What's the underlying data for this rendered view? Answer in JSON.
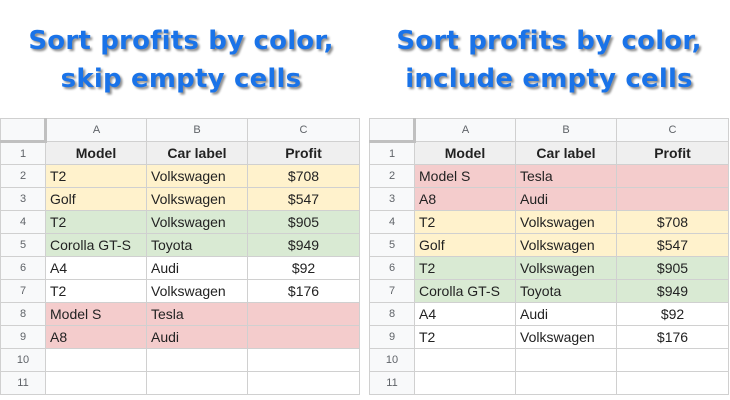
{
  "left_panel": {
    "title_line1": "Sort profits by color,",
    "title_line2": "skip empty cells",
    "columns": [
      "A",
      "B",
      "C"
    ],
    "header": {
      "row_number": "1",
      "model": "Model",
      "car_label": "Car label",
      "profit": "Profit"
    },
    "rows": [
      {
        "n": "2",
        "model": "T2",
        "car": "Volkswagen",
        "profit": "$708",
        "color": "yellow"
      },
      {
        "n": "3",
        "model": "Golf",
        "car": "Volkswagen",
        "profit": "$547",
        "color": "yellow"
      },
      {
        "n": "4",
        "model": "T2",
        "car": "Volkswagen",
        "profit": "$905",
        "color": "green"
      },
      {
        "n": "5",
        "model": "Corolla GT-S",
        "car": "Toyota",
        "profit": "$949",
        "color": "green"
      },
      {
        "n": "6",
        "model": "A4",
        "car": "Audi",
        "profit": "$92",
        "color": ""
      },
      {
        "n": "7",
        "model": "T2",
        "car": "Volkswagen",
        "profit": "$176",
        "color": ""
      },
      {
        "n": "8",
        "model": "Model S",
        "car": "Tesla",
        "profit": "",
        "color": "red"
      },
      {
        "n": "9",
        "model": "A8",
        "car": "Audi",
        "profit": "",
        "color": "red"
      },
      {
        "n": "10",
        "model": "",
        "car": "",
        "profit": "",
        "color": ""
      },
      {
        "n": "11",
        "model": "",
        "car": "",
        "profit": "",
        "color": ""
      }
    ]
  },
  "right_panel": {
    "title_line1": "Sort profits by color,",
    "title_line2": "include empty cells",
    "columns": [
      "A",
      "B",
      "C"
    ],
    "header": {
      "row_number": "1",
      "model": "Model",
      "car_label": "Car label",
      "profit": "Profit"
    },
    "rows": [
      {
        "n": "2",
        "model": "Model S",
        "car": "Tesla",
        "profit": "",
        "color": "red"
      },
      {
        "n": "3",
        "model": "A8",
        "car": "Audi",
        "profit": "",
        "color": "red"
      },
      {
        "n": "4",
        "model": "T2",
        "car": "Volkswagen",
        "profit": "$708",
        "color": "yellow"
      },
      {
        "n": "5",
        "model": "Golf",
        "car": "Volkswagen",
        "profit": "$547",
        "color": "yellow"
      },
      {
        "n": "6",
        "model": "T2",
        "car": "Volkswagen",
        "profit": "$905",
        "color": "green"
      },
      {
        "n": "7",
        "model": "Corolla GT-S",
        "car": "Toyota",
        "profit": "$949",
        "color": "green"
      },
      {
        "n": "8",
        "model": "A4",
        "car": "Audi",
        "profit": "$92",
        "color": ""
      },
      {
        "n": "9",
        "model": "T2",
        "car": "Volkswagen",
        "profit": "$176",
        "color": ""
      },
      {
        "n": "10",
        "model": "",
        "car": "",
        "profit": "",
        "color": ""
      },
      {
        "n": "11",
        "model": "",
        "car": "",
        "profit": "",
        "color": ""
      }
    ]
  },
  "colors": {
    "title_blue": "#1a73e8",
    "yellow_fill": "#fff2cc",
    "green_fill": "#d9ead3",
    "red_fill": "#f4cccc"
  }
}
